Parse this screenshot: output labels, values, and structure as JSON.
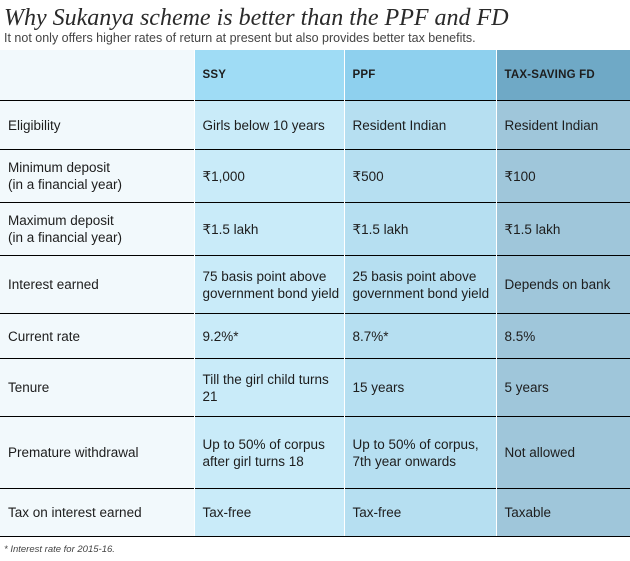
{
  "title": "Why Sukanya scheme is better than the PPF and FD",
  "subtitle": "It not only offers higher rates of return at present but also provides better tax benefits.",
  "columns": [
    "",
    "SSY",
    "PPF",
    "TAX-SAVING FD"
  ],
  "rows": [
    {
      "label": [
        "Eligibility"
      ],
      "ssy": [
        "Girls below 10 years"
      ],
      "ppf": [
        "Resident Indian"
      ],
      "fd": [
        "Resident Indian"
      ]
    },
    {
      "label": [
        "Minimum deposit",
        "(in a financial year)"
      ],
      "ssy": [
        "₹1,000"
      ],
      "ppf": [
        "₹500"
      ],
      "fd": [
        "₹100"
      ]
    },
    {
      "label": [
        "Maximum deposit",
        "(in a financial year)"
      ],
      "ssy": [
        "₹1.5 lakh"
      ],
      "ppf": [
        "₹1.5 lakh"
      ],
      "fd": [
        "₹1.5 lakh"
      ]
    },
    {
      "label": [
        "Interest earned"
      ],
      "ssy": [
        "75 basis point above",
        "government bond yield"
      ],
      "ppf": [
        "25 basis point above",
        "government bond yield"
      ],
      "fd": [
        "Depends on bank"
      ]
    },
    {
      "label": [
        "Current rate"
      ],
      "ssy": [
        "9.2%*"
      ],
      "ppf": [
        "8.7%*"
      ],
      "fd": [
        "8.5%"
      ]
    },
    {
      "label": [
        "Tenure"
      ],
      "ssy": [
        "Till the girl child turns",
        "21"
      ],
      "ppf": [
        "15 years"
      ],
      "fd": [
        "5 years"
      ]
    },
    {
      "label": [
        "Premature withdrawal"
      ],
      "ssy": [
        "Up to 50% of corpus",
        "after girl turns 18"
      ],
      "ppf": [
        "Up to 50% of corpus,",
        "7th year onwards"
      ],
      "fd": [
        "Not allowed"
      ]
    },
    {
      "label": [
        "Tax on interest earned"
      ],
      "ssy": [
        "Tax-free"
      ],
      "ppf": [
        "Tax-free"
      ],
      "fd": [
        "Taxable"
      ]
    }
  ],
  "footnote": "* Interest rate for 2015-16."
}
